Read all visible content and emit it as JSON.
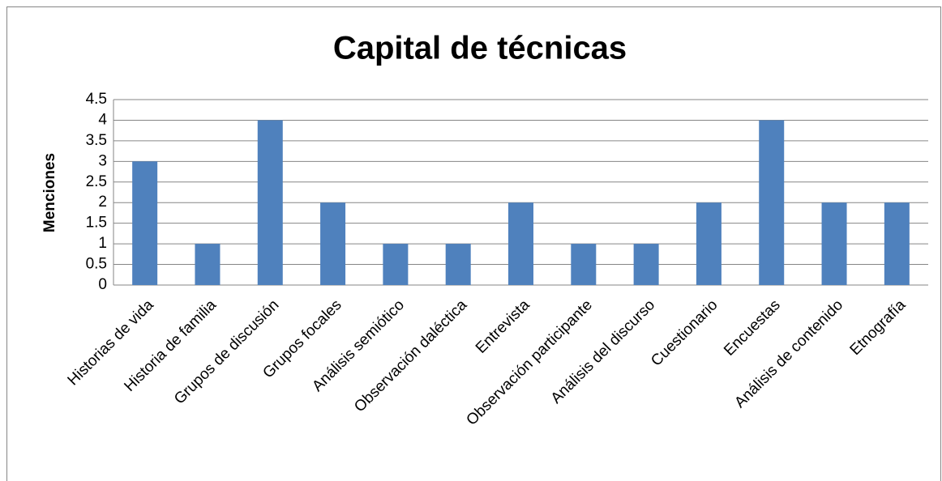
{
  "chart_data": {
    "type": "bar",
    "title": "Capital de técnicas",
    "y_label": "Menciones",
    "categories": [
      "Historias de vida",
      "Historia de familia",
      "Grupos de discusión",
      "Grupos focales",
      "Análisis semiótico",
      "Observación daléctica",
      "Entrevista",
      "Observación participante",
      "Análisis del discurso",
      "Cuestionario",
      "Encuestas",
      "Análisis de contenido",
      "Etnografía"
    ],
    "values": [
      3,
      1,
      4,
      2,
      1,
      1,
      2,
      1,
      1,
      2,
      4,
      2,
      2
    ],
    "color": "#4f81bd",
    "ylim": [
      0,
      4.5
    ],
    "yticks": [
      0,
      0.5,
      1,
      1.5,
      2,
      2.5,
      3,
      3.5,
      4,
      4.5
    ],
    "grid": true
  }
}
